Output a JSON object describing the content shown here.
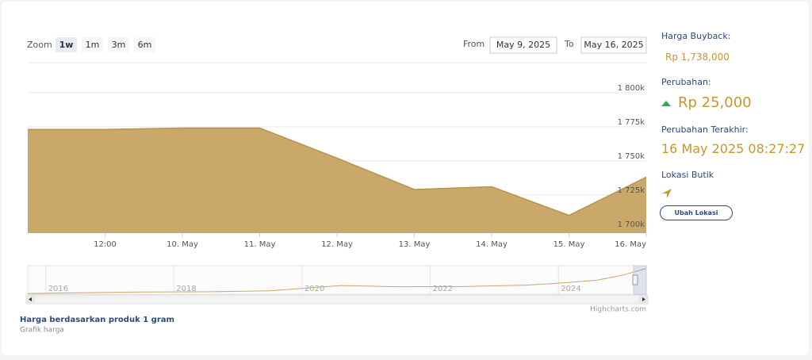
{
  "toolbar": {
    "zoom_label": "Zoom",
    "zoom_buttons": [
      "1w",
      "1m",
      "3m",
      "6m"
    ],
    "from_label": "From",
    "from_value": "May 9, 2025",
    "to_label": "To",
    "to_value": "May 16, 2025"
  },
  "chart_data": [
    {
      "type": "area",
      "categories": [
        null,
        "12:00",
        "10. May",
        "11. May",
        "12. May",
        "13. May",
        "14. May",
        "15. May",
        "16. May"
      ],
      "values": [
        1773000,
        1773000,
        1774000,
        1774000,
        1752000,
        1729000,
        1731000,
        1710000,
        1738000
      ],
      "color": "#c9a86a",
      "line_color": "#b8924f",
      "ylim": [
        1697000,
        1822000
      ],
      "yticks": [
        {
          "value": 1700000,
          "label": "1 700k"
        },
        {
          "value": 1725000,
          "label": "1 725k"
        },
        {
          "value": 1750000,
          "label": "1 750k"
        },
        {
          "value": 1775000,
          "label": "1 775k"
        },
        {
          "value": 1800000,
          "label": "1 800k"
        }
      ],
      "grid": true
    },
    {
      "type": "line",
      "x": [
        2015.72,
        2016.5,
        2017.5,
        2018.5,
        2019.5,
        2020.6,
        2021.5,
        2022.5,
        2023.5,
        2024.0,
        2024.6,
        2025.0,
        2025.37
      ],
      "values": [
        480000,
        520000,
        560000,
        570000,
        620000,
        880000,
        820000,
        830000,
        900000,
        1000000,
        1150000,
        1400000,
        1738000
      ],
      "color": "#c9a86a",
      "xlim": [
        2015.72,
        2025.37
      ],
      "xticks": [
        2016,
        2018,
        2020,
        2022,
        2024
      ],
      "ylim": [
        450000,
        1800000
      ]
    }
  ],
  "sidebar": {
    "buyback_label": "Harga Buyback:",
    "buyback_value": "Rp 1,738,000",
    "change_label": "Perubahan:",
    "change_value": "Rp 25,000",
    "last_label": "Perubahan Terakhir:",
    "last_value": "16 May 2025 08:27:27",
    "location_label": "Lokasi Butik",
    "location_button": "Ubah Lokasi"
  },
  "footer": {
    "credit": "Highcharts.com",
    "note": "Harga berdasarkan produk 1 gram",
    "subnote": "Grafik harga"
  }
}
